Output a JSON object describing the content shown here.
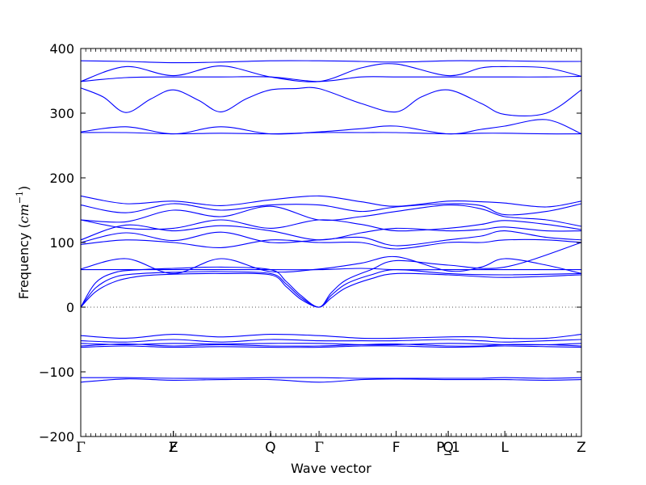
{
  "chart_data": {
    "type": "line",
    "title": "",
    "xlabel": "Wave vector",
    "ylabel": "Frequency ($cm^{-1}$)",
    "ylabel_parts": {
      "text": "Frequency (",
      "math_base": "cm",
      "math_sup": "−1",
      "close": ")"
    },
    "ylim": [
      -200,
      400
    ],
    "yticks": [
      -200,
      -100,
      0,
      100,
      200,
      300,
      400
    ],
    "xlim": [
      0,
      1
    ],
    "grid": false,
    "legend": "none",
    "zero_line": {
      "y": 0,
      "style": "dotted"
    },
    "colors": {
      "bands": "#0000ff",
      "axes": "#000000",
      "zero_line": "#555555"
    },
    "high_symmetry_points": [
      {
        "label": "Γ",
        "x": 0.0
      },
      {
        "label": "Z",
        "x": 0.185
      },
      {
        "label": "F",
        "x": 0.185
      },
      {
        "label": "Q",
        "x": 0.379
      },
      {
        "label": "Γ",
        "x": 0.476
      },
      {
        "label": "F",
        "x": 0.63
      },
      {
        "label": "P_1",
        "x": 0.734
      },
      {
        "label": "Q",
        "x": 0.734
      },
      {
        "label": "L",
        "x": 0.847
      },
      {
        "label": "Z",
        "x": 1.0
      }
    ],
    "series": [
      {
        "x": [
          0,
          0.09,
          0.185,
          0.28,
          0.379,
          0.476,
          0.56,
          0.63,
          0.734,
          0.8,
          0.847,
          0.93,
          1.0
        ],
        "values": [
          381,
          380,
          378,
          379,
          381,
          381,
          380,
          379,
          381,
          381,
          381,
          380,
          380
        ]
      },
      {
        "x": [
          0,
          0.09,
          0.185,
          0.28,
          0.379,
          0.476,
          0.56,
          0.63,
          0.734,
          0.8,
          0.847,
          0.93,
          1.0
        ],
        "values": [
          349,
          372,
          358,
          373,
          356,
          349,
          370,
          376,
          358,
          370,
          372,
          370,
          357
        ]
      },
      {
        "x": [
          0,
          0.09,
          0.185,
          0.28,
          0.379,
          0.476,
          0.56,
          0.63,
          0.734,
          0.8,
          0.847,
          0.93,
          1.0
        ],
        "values": [
          349,
          355,
          356,
          356,
          356,
          349,
          356,
          356,
          356,
          356,
          356,
          356,
          357
        ]
      },
      {
        "x": [
          0,
          0.045,
          0.09,
          0.14,
          0.185,
          0.235,
          0.28,
          0.33,
          0.379,
          0.43,
          0.476,
          0.56,
          0.63,
          0.68,
          0.734,
          0.8,
          0.847,
          0.93,
          1.0
        ],
        "values": [
          339,
          325,
          301,
          322,
          336,
          320,
          302,
          322,
          336,
          338,
          338,
          315,
          302,
          325,
          336,
          315,
          298,
          300,
          336
        ]
      },
      {
        "x": [
          0,
          0.09,
          0.185,
          0.28,
          0.379,
          0.476,
          0.56,
          0.63,
          0.734,
          0.8,
          0.847,
          0.93,
          1.0
        ],
        "values": [
          271,
          279,
          268,
          279,
          268,
          271,
          276,
          280,
          268,
          275,
          280,
          290,
          268
        ]
      },
      {
        "x": [
          0,
          0.09,
          0.185,
          0.28,
          0.379,
          0.476,
          0.56,
          0.63,
          0.734,
          0.8,
          0.847,
          0.93,
          1.0
        ],
        "values": [
          270,
          270,
          268,
          269,
          268,
          270,
          270,
          270,
          268,
          269,
          269,
          268,
          268
        ]
      },
      {
        "x": [
          0,
          0.09,
          0.185,
          0.28,
          0.379,
          0.476,
          0.56,
          0.63,
          0.734,
          0.8,
          0.847,
          0.93,
          1.0
        ],
        "values": [
          172,
          160,
          164,
          157,
          166,
          172,
          163,
          156,
          164,
          163,
          161,
          155,
          164
        ]
      },
      {
        "x": [
          0,
          0.09,
          0.185,
          0.28,
          0.379,
          0.476,
          0.56,
          0.63,
          0.734,
          0.8,
          0.847,
          0.93,
          1.0
        ],
        "values": [
          158,
          146,
          160,
          150,
          158,
          158,
          148,
          155,
          160,
          157,
          143,
          148,
          160
        ]
      },
      {
        "x": [
          0,
          0.09,
          0.185,
          0.28,
          0.379,
          0.476,
          0.56,
          0.63,
          0.734,
          0.8,
          0.847,
          0.93,
          1.0
        ],
        "values": [
          135,
          132,
          150,
          140,
          156,
          135,
          140,
          148,
          158,
          152,
          140,
          135,
          125
        ]
      },
      {
        "x": [
          0,
          0.09,
          0.185,
          0.28,
          0.379,
          0.476,
          0.56,
          0.63,
          0.734,
          0.8,
          0.847,
          0.93,
          1.0
        ],
        "values": [
          135,
          122,
          122,
          135,
          122,
          135,
          128,
          118,
          122,
          128,
          134,
          128,
          120
        ]
      },
      {
        "x": [
          0,
          0.09,
          0.185,
          0.28,
          0.379,
          0.476,
          0.56,
          0.63,
          0.734,
          0.8,
          0.847,
          0.93,
          1.0
        ],
        "values": [
          104,
          127,
          118,
          126,
          118,
          104,
          115,
          122,
          118,
          120,
          124,
          118,
          118
        ]
      },
      {
        "x": [
          0,
          0.09,
          0.185,
          0.28,
          0.379,
          0.476,
          0.56,
          0.63,
          0.734,
          0.8,
          0.847,
          0.93,
          1.0
        ],
        "values": [
          100,
          115,
          103,
          116,
          100,
          104,
          108,
          95,
          104,
          110,
          118,
          108,
          104
        ]
      },
      {
        "x": [
          0,
          0.09,
          0.185,
          0.28,
          0.379,
          0.476,
          0.56,
          0.63,
          0.734,
          0.8,
          0.847,
          0.93,
          1.0
        ],
        "values": [
          97,
          104,
          100,
          92,
          104,
          100,
          100,
          90,
          100,
          100,
          104,
          104,
          100
        ]
      },
      {
        "x": [
          0,
          0.09,
          0.185,
          0.28,
          0.379,
          0.476,
          0.56,
          0.63,
          0.734,
          0.8,
          0.847,
          0.93,
          1.0
        ],
        "values": [
          59,
          75,
          52,
          75,
          55,
          59,
          68,
          78,
          56,
          62,
          75,
          65,
          52
        ]
      },
      {
        "x": [
          0,
          0.09,
          0.185,
          0.28,
          0.379,
          0.476,
          0.56,
          0.63,
          0.734,
          0.8,
          0.847,
          0.93,
          1.0
        ],
        "values": [
          58,
          58,
          58,
          58,
          58,
          58,
          60,
          58,
          58,
          58,
          58,
          58,
          58
        ]
      },
      {
        "x": [
          0,
          0.03,
          0.07,
          0.12,
          0.185,
          0.28,
          0.379,
          0.41,
          0.44,
          0.476,
          0.5,
          0.53,
          0.58,
          0.63,
          0.734,
          0.847,
          1.0
        ],
        "values": [
          0,
          38,
          54,
          58,
          60,
          62,
          58,
          40,
          18,
          0,
          22,
          42,
          58,
          72,
          65,
          62,
          100
        ]
      },
      {
        "x": [
          0,
          0.03,
          0.07,
          0.12,
          0.185,
          0.28,
          0.379,
          0.41,
          0.44,
          0.476,
          0.5,
          0.53,
          0.58,
          0.63,
          0.734,
          0.847,
          1.0
        ],
        "values": [
          0,
          30,
          47,
          52,
          54,
          55,
          52,
          36,
          15,
          0,
          18,
          36,
          50,
          58,
          52,
          50,
          52
        ]
      },
      {
        "x": [
          0,
          0.03,
          0.07,
          0.12,
          0.185,
          0.28,
          0.379,
          0.41,
          0.44,
          0.476,
          0.5,
          0.53,
          0.58,
          0.63,
          0.734,
          0.847,
          1.0
        ],
        "values": [
          0,
          24,
          40,
          48,
          51,
          52,
          50,
          32,
          12,
          0,
          14,
          30,
          44,
          52,
          50,
          46,
          50
        ]
      },
      {
        "x": [
          0,
          0.09,
          0.185,
          0.28,
          0.379,
          0.476,
          0.56,
          0.63,
          0.734,
          0.8,
          0.847,
          0.93,
          1.0
        ],
        "values": [
          -44,
          -48,
          -42,
          -46,
          -42,
          -44,
          -48,
          -48,
          -46,
          -46,
          -48,
          -48,
          -42
        ]
      },
      {
        "x": [
          0,
          0.09,
          0.185,
          0.28,
          0.379,
          0.476,
          0.56,
          0.63,
          0.734,
          0.8,
          0.847,
          0.93,
          1.0
        ],
        "values": [
          -52,
          -54,
          -50,
          -54,
          -50,
          -52,
          -52,
          -52,
          -50,
          -52,
          -54,
          -52,
          -50
        ]
      },
      {
        "x": [
          0,
          0.09,
          0.185,
          0.28,
          0.379,
          0.476,
          0.56,
          0.63,
          0.734,
          0.8,
          0.847,
          0.93,
          1.0
        ],
        "values": [
          -56,
          -58,
          -56,
          -57,
          -56,
          -56,
          -58,
          -58,
          -56,
          -57,
          -58,
          -58,
          -56
        ]
      },
      {
        "x": [
          0,
          0.09,
          0.185,
          0.28,
          0.379,
          0.476,
          0.56,
          0.63,
          0.734,
          0.8,
          0.847,
          0.93,
          1.0
        ],
        "values": [
          -60,
          -57,
          -60,
          -58,
          -60,
          -60,
          -58,
          -57,
          -60,
          -60,
          -58,
          -58,
          -60
        ]
      },
      {
        "x": [
          0,
          0.09,
          0.185,
          0.28,
          0.379,
          0.476,
          0.56,
          0.63,
          0.734,
          0.8,
          0.847,
          0.93,
          1.0
        ],
        "values": [
          -62,
          -60,
          -62,
          -61,
          -62,
          -62,
          -60,
          -60,
          -62,
          -61,
          -60,
          -61,
          -62
        ]
      },
      {
        "x": [
          0,
          0.09,
          0.185,
          0.28,
          0.379,
          0.476,
          0.56,
          0.63,
          0.734,
          0.8,
          0.847,
          0.93,
          1.0
        ],
        "values": [
          -109,
          -109,
          -110,
          -110,
          -109,
          -109,
          -110,
          -110,
          -110,
          -110,
          -109,
          -110,
          -109
        ]
      },
      {
        "x": [
          0,
          0.09,
          0.185,
          0.28,
          0.379,
          0.476,
          0.56,
          0.63,
          0.734,
          0.8,
          0.847,
          0.93,
          1.0
        ],
        "values": [
          -116,
          -111,
          -113,
          -112,
          -112,
          -116,
          -112,
          -111,
          -112,
          -112,
          -112,
          -113,
          -112
        ]
      }
    ]
  }
}
